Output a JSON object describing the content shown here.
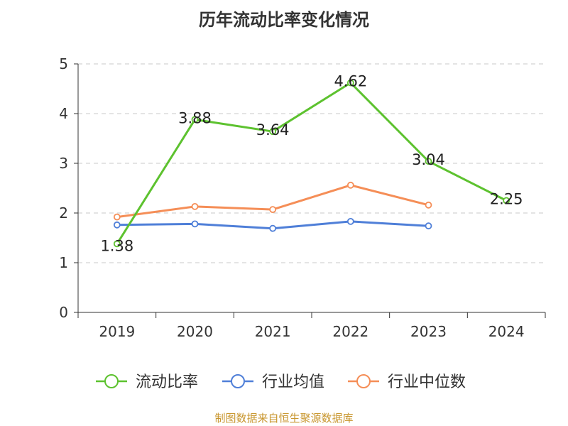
{
  "chart_data": {
    "type": "line",
    "title": "历年流动比率变化情况",
    "categories": [
      "2019",
      "2020",
      "2021",
      "2022",
      "2023",
      "2024"
    ],
    "series": [
      {
        "name": "流动比率",
        "color": "#5dc22f",
        "values": [
          1.38,
          3.88,
          3.64,
          4.62,
          3.04,
          2.25
        ],
        "data_labels": [
          "1.38",
          "3.88",
          "3.64",
          "4.62",
          "3.04",
          "2.25"
        ]
      },
      {
        "name": "行业均值",
        "color": "#4f7fd8",
        "values": [
          1.76,
          1.78,
          1.69,
          1.83,
          1.74,
          null
        ]
      },
      {
        "name": "行业中位数",
        "color": "#f58e57",
        "values": [
          1.92,
          2.13,
          2.07,
          2.56,
          2.16,
          null
        ]
      }
    ],
    "y_ticks": [
      "0",
      "1",
      "2",
      "3",
      "4",
      "5"
    ],
    "ylim": [
      0,
      5
    ],
    "grid": "horizontal-dashed",
    "legend_position": "bottom"
  },
  "source": "制图数据来自恒生聚源数据库"
}
